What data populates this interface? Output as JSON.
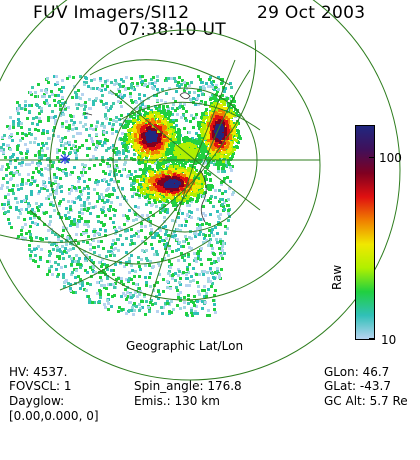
{
  "header": {
    "instrument": "FUV Imagers/SI12",
    "date": "29 Oct 2003",
    "time": "07:38:10 UT"
  },
  "map": {
    "caption": "Geographic Lat/Lon",
    "grid_color": "#2e7d1e",
    "marker_color": "#2233dd"
  },
  "colorbar": {
    "label": "Raw",
    "ticks": [
      "100",
      "10"
    ],
    "top_tick": "100",
    "bottom_tick": "10",
    "colors": [
      "#b7d3f0",
      "#30c0b8",
      "#20d040",
      "#b0f000",
      "#f0e800",
      "#f08000",
      "#e01010",
      "#800020",
      "#40105a",
      "#202880"
    ]
  },
  "info": {
    "hv": "HV:  4537.",
    "fovscl": "FOVSCL: 1",
    "dayglow": "Dayglow:",
    "dayglow_val": "[0.00,0.000,   0]",
    "spin": "Spin_angle: 176.8",
    "emis": "Emis.: 130 km",
    "glon": "GLon:  46.7",
    "glat": "GLat:  -43.7",
    "gcalt": "GC Alt: 5.7 Re"
  }
}
